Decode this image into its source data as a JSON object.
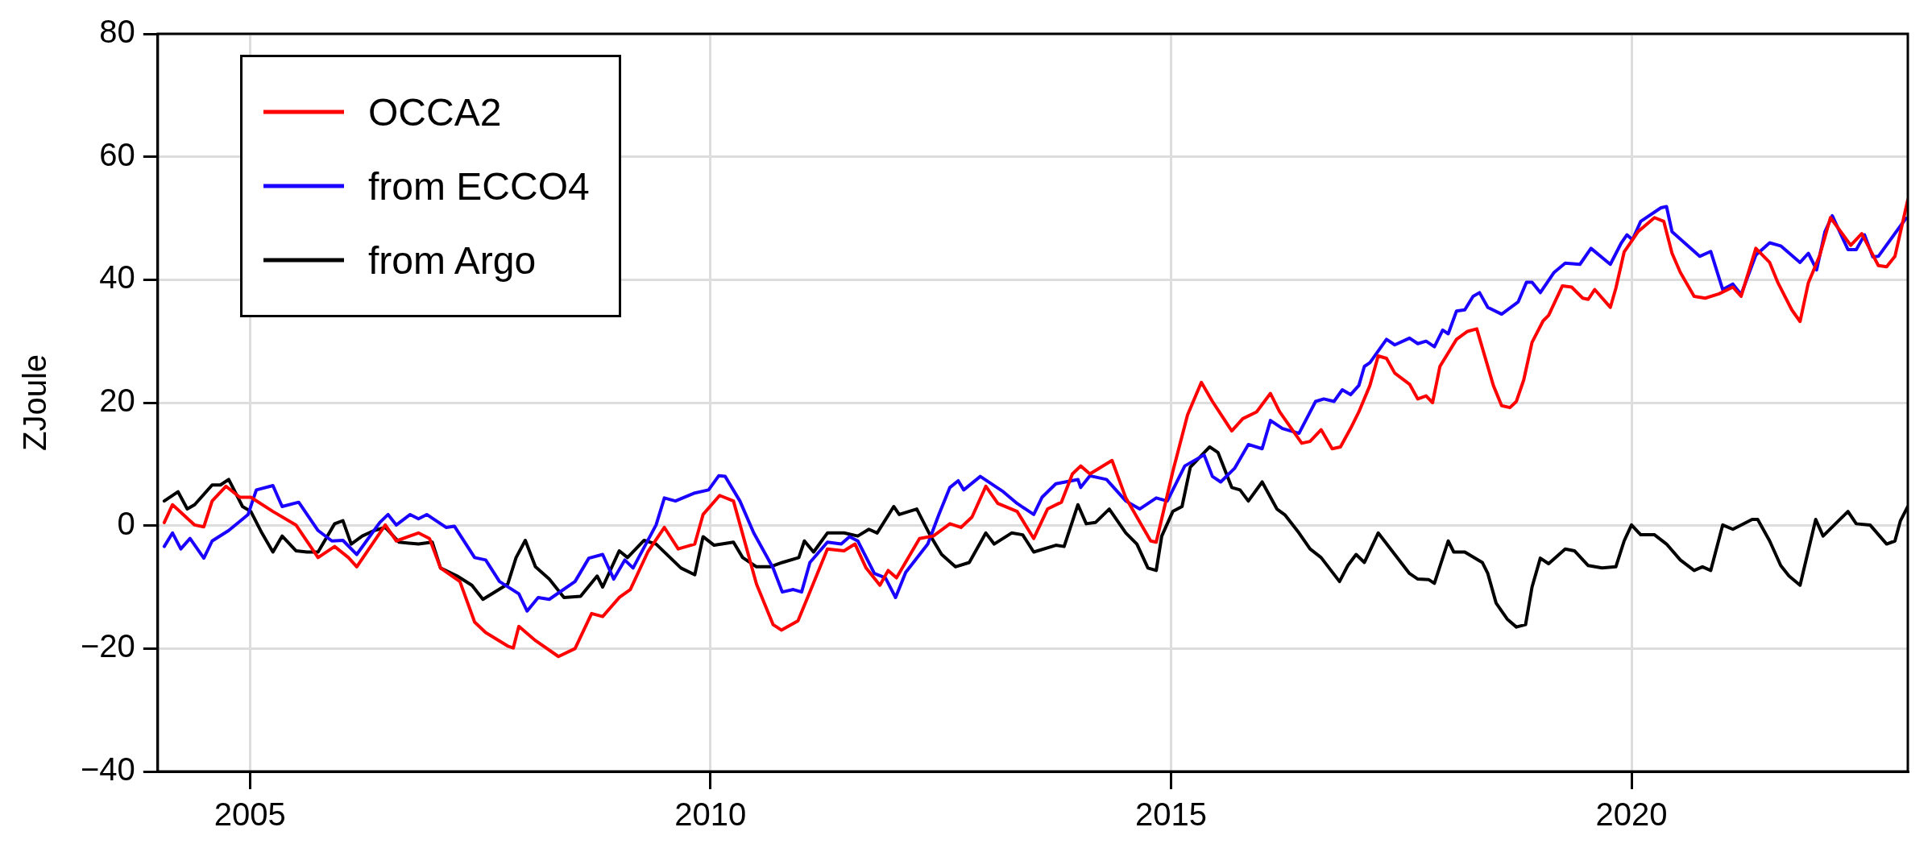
{
  "chart_data": {
    "type": "line",
    "ylabel": "ZJoule",
    "xlim": [
      2004,
      2023
    ],
    "xticks": [
      2005,
      2010,
      2015,
      2020
    ],
    "ylim": [
      -40,
      80
    ],
    "yticks": [
      -40,
      -20,
      0,
      20,
      40,
      60,
      80
    ],
    "grid": true,
    "legend": "top left",
    "line_style": "solid",
    "marker": "none",
    "series": [
      {
        "name": "OCCA2",
        "color": "#ff0000",
        "x": [
          2004.07,
          2004.16,
          2004.4,
          2004.5,
          2004.59,
          2004.74,
          2004.89,
          2005.01,
          2005.25,
          2005.5,
          2005.74,
          2005.92,
          2006.07,
          2006.16,
          2006.47,
          2006.59,
          2006.83,
          2006.95,
          2007.07,
          2007.28,
          2007.44,
          2007.56,
          2007.8,
          2007.86,
          2007.92,
          2008.1,
          2008.35,
          2008.53,
          2008.71,
          2008.83,
          2009.01,
          2009.13,
          2009.32,
          2009.5,
          2009.65,
          2009.83,
          2009.92,
          2010.1,
          2010.25,
          2010.5,
          2010.68,
          2010.77,
          2010.95,
          2011.08,
          2011.27,
          2011.45,
          2011.57,
          2011.69,
          2011.84,
          2011.93,
          2012.02,
          2012.27,
          2012.42,
          2012.6,
          2012.72,
          2012.84,
          2012.99,
          2013.12,
          2013.33,
          2013.51,
          2013.66,
          2013.81,
          2013.93,
          2014.02,
          2014.12,
          2014.36,
          2014.51,
          2014.78,
          2014.84,
          2015.02,
          2015.18,
          2015.33,
          2015.45,
          2015.66,
          2015.78,
          2015.93,
          2016.08,
          2016.18,
          2016.42,
          2016.51,
          2016.63,
          2016.75,
          2016.84,
          2016.95,
          2017.04,
          2017.16,
          2017.25,
          2017.34,
          2017.43,
          2017.59,
          2017.68,
          2017.77,
          2017.84,
          2017.92,
          2018.1,
          2018.22,
          2018.32,
          2018.5,
          2018.59,
          2018.68,
          2018.75,
          2018.83,
          2018.92,
          2019.04,
          2019.1,
          2019.25,
          2019.35,
          2019.47,
          2019.53,
          2019.6,
          2019.77,
          2019.83,
          2019.92,
          2020.07,
          2020.25,
          2020.35,
          2020.44,
          2020.53,
          2020.68,
          2020.8,
          2020.95,
          2021.1,
          2021.19,
          2021.35,
          2021.5,
          2021.59,
          2021.74,
          2021.83,
          2021.92,
          2022.04,
          2022.16,
          2022.38,
          2022.5,
          2022.68,
          2022.77,
          2022.86,
          2023.0
        ],
        "values": [
          0.5,
          3.4,
          0.1,
          -0.2,
          4,
          6.4,
          4.6,
          4.6,
          2.3,
          0.1,
          -5.2,
          -3.4,
          -5.2,
          -6.7,
          0.1,
          -2.5,
          -1.2,
          -2.1,
          -6.9,
          -9.1,
          -15.7,
          -17.4,
          -19.6,
          -19.9,
          -16.4,
          -18.7,
          -21.3,
          -20,
          -14.3,
          -14.8,
          -11.7,
          -10.4,
          -4.3,
          -0.3,
          -3.8,
          -3,
          1.8,
          4.9,
          4,
          -9.5,
          -16.1,
          -17,
          -15.5,
          -10.8,
          -3.8,
          -4.1,
          -3,
          -6.9,
          -9.7,
          -7.3,
          -8.5,
          -2.1,
          -1.7,
          0.3,
          -0.3,
          1.4,
          6.4,
          3.6,
          2.3,
          -2.1,
          2.7,
          3.8,
          8.4,
          9.7,
          8.4,
          10.6,
          4.5,
          -2.5,
          -2.7,
          8.8,
          18,
          23.3,
          20.2,
          15.4,
          17.4,
          18.5,
          21.5,
          18.5,
          13.4,
          13.7,
          15.6,
          12.5,
          12.8,
          15.8,
          18.5,
          22.8,
          27.6,
          27.2,
          24.8,
          23,
          20.6,
          21.1,
          20,
          25.9,
          30.3,
          31.6,
          32,
          22.8,
          19.5,
          19.2,
          20.2,
          23.7,
          29.8,
          33.3,
          34.2,
          39,
          38.8,
          37,
          36.8,
          38.4,
          35.5,
          38.6,
          44.5,
          47.8,
          50.1,
          49.5,
          44.3,
          41.2,
          37.3,
          37,
          37.7,
          38.8,
          37.3,
          45.1,
          42.8,
          39.5,
          35.1,
          33.2,
          39.5,
          43.8,
          50.1,
          45.6,
          47.5,
          42.3,
          42.1,
          43.8,
          53
        ]
      },
      {
        "name": "from ECCO4",
        "color": "#1a00ff",
        "x": [
          2004.07,
          2004.16,
          2004.25,
          2004.35,
          2004.5,
          2004.59,
          2004.77,
          2004.98,
          2005.07,
          2005.25,
          2005.35,
          2005.53,
          2005.74,
          2005.89,
          2006.01,
          2006.16,
          2006.41,
          2006.5,
          2006.59,
          2006.74,
          2006.83,
          2006.92,
          2007.13,
          2007.22,
          2007.44,
          2007.56,
          2007.71,
          2007.92,
          2008.01,
          2008.13,
          2008.25,
          2008.53,
          2008.68,
          2008.83,
          2008.95,
          2009.07,
          2009.16,
          2009.41,
          2009.5,
          2009.62,
          2009.83,
          2009.98,
          2010.09,
          2010.16,
          2010.32,
          2010.47,
          2010.68,
          2010.78,
          2010.9,
          2010.99,
          2011.08,
          2011.27,
          2011.42,
          2011.51,
          2011.6,
          2011.78,
          2011.9,
          2012.01,
          2012.12,
          2012.36,
          2012.48,
          2012.6,
          2012.69,
          2012.75,
          2012.93,
          2013.18,
          2013.33,
          2013.51,
          2013.6,
          2013.75,
          2013.99,
          2014.02,
          2014.12,
          2014.3,
          2014.51,
          2014.66,
          2014.84,
          2014.96,
          2015.15,
          2015.36,
          2015.45,
          2015.54,
          2015.69,
          2015.84,
          2015.99,
          2016.08,
          2016.21,
          2016.39,
          2016.57,
          2016.66,
          2016.77,
          2016.86,
          2016.95,
          2017.04,
          2017.1,
          2017.16,
          2017.34,
          2017.43,
          2017.59,
          2017.68,
          2017.77,
          2017.86,
          2017.95,
          2018.01,
          2018.1,
          2018.19,
          2018.28,
          2018.35,
          2018.44,
          2018.59,
          2018.77,
          2018.86,
          2018.92,
          2019.01,
          2019.16,
          2019.28,
          2019.44,
          2019.56,
          2019.77,
          2019.89,
          2019.95,
          2020.01,
          2020.1,
          2020.32,
          2020.38,
          2020.44,
          2020.74,
          2020.86,
          2020.99,
          2021.1,
          2021.19,
          2021.35,
          2021.5,
          2021.62,
          2021.83,
          2021.92,
          2022.01,
          2022.1,
          2022.18,
          2022.35,
          2022.44,
          2022.53,
          2022.62,
          2022.68,
          2022.98
        ],
        "values": [
          -3.4,
          -1.2,
          -3.8,
          -2.1,
          -5.3,
          -2.5,
          -0.8,
          1.8,
          5.8,
          6.5,
          3.1,
          3.8,
          -0.8,
          -2.5,
          -2.4,
          -4.7,
          0.5,
          1.8,
          0.1,
          1.8,
          1.1,
          1.8,
          -0.3,
          -0.1,
          -5.2,
          -5.6,
          -9.1,
          -11.1,
          -13.9,
          -11.7,
          -12,
          -9.1,
          -5.3,
          -4.7,
          -8.7,
          -5.6,
          -6.9,
          0.1,
          4.5,
          4,
          5.3,
          5.8,
          8.1,
          8,
          4,
          -1.2,
          -6.9,
          -10.8,
          -10.4,
          -10.8,
          -6,
          -2.7,
          -3,
          -1.8,
          -2.5,
          -7.8,
          -8.5,
          -11.7,
          -7.6,
          -3,
          1.8,
          6.2,
          7.3,
          5.8,
          8,
          5.5,
          3.6,
          1.8,
          4.6,
          6.8,
          7.5,
          6.2,
          8.1,
          7.5,
          4,
          2.7,
          4.5,
          4,
          9.7,
          11.5,
          8,
          7.1,
          9.3,
          13.2,
          12.5,
          17.1,
          15.8,
          15,
          20.2,
          20.6,
          20.2,
          22.1,
          21.3,
          22.8,
          25.9,
          26.5,
          30.3,
          29.4,
          30.5,
          29.6,
          30,
          29.1,
          31.8,
          31.2,
          34.9,
          35.1,
          37.3,
          37.9,
          35.5,
          34.4,
          36.4,
          39.6,
          39.6,
          37.9,
          41.2,
          42.7,
          42.5,
          45.1,
          42.5,
          46,
          47.3,
          46.5,
          49.5,
          51.7,
          51.9,
          47.8,
          43.8,
          44.6,
          38.4,
          39.3,
          37.6,
          44,
          46,
          45.5,
          42.8,
          44.3,
          41.6,
          47.8,
          50.4,
          44.9,
          44.9,
          47.3,
          43.7,
          43.8,
          50
        ]
      },
      {
        "name": "from Argo",
        "color": "#000000",
        "x": [
          2004.07,
          2004.22,
          2004.32,
          2004.4,
          2004.59,
          2004.68,
          2004.77,
          2004.92,
          2005.01,
          2005.13,
          2005.25,
          2005.35,
          2005.5,
          2005.62,
          2005.74,
          2005.92,
          2006.01,
          2006.1,
          2006.22,
          2006.35,
          2006.47,
          2006.62,
          2006.83,
          2006.98,
          2007.07,
          2007.25,
          2007.41,
          2007.53,
          2007.8,
          2007.89,
          2007.99,
          2008.1,
          2008.25,
          2008.41,
          2008.59,
          2008.77,
          2008.83,
          2009.01,
          2009.1,
          2009.28,
          2009.41,
          2009.68,
          2009.83,
          2009.92,
          2010.04,
          2010.25,
          2010.35,
          2010.5,
          2010.65,
          2010.78,
          2010.96,
          2011.02,
          2011.12,
          2011.27,
          2011.45,
          2011.6,
          2011.72,
          2011.81,
          2011.99,
          2012.05,
          2012.24,
          2012.39,
          2012.51,
          2012.66,
          2012.81,
          2012.99,
          2013.08,
          2013.27,
          2013.39,
          2013.51,
          2013.75,
          2013.84,
          2013.99,
          2014.08,
          2014.18,
          2014.33,
          2014.51,
          2014.63,
          2014.75,
          2014.84,
          2014.9,
          2015.02,
          2015.12,
          2015.21,
          2015.42,
          2015.51,
          2015.66,
          2015.75,
          2015.84,
          2015.99,
          2016.15,
          2016.24,
          2016.39,
          2016.51,
          2016.63,
          2016.83,
          2016.92,
          2017.01,
          2017.1,
          2017.25,
          2017.59,
          2017.68,
          2017.8,
          2017.86,
          2018.01,
          2018.07,
          2018.19,
          2018.38,
          2018.44,
          2018.53,
          2018.65,
          2018.75,
          2018.85,
          2018.92,
          2019.01,
          2019.1,
          2019.28,
          2019.38,
          2019.53,
          2019.68,
          2019.83,
          2019.92,
          2020.0,
          2020.1,
          2020.25,
          2020.38,
          2020.53,
          2020.68,
          2020.77,
          2020.86,
          2020.99,
          2021.1,
          2021.31,
          2021.37,
          2021.5,
          2021.62,
          2021.71,
          2021.83,
          2022.0,
          2022.08,
          2022.35,
          2022.44,
          2022.59,
          2022.77,
          2022.86,
          2022.92,
          2023.0
        ],
        "values": [
          4,
          5.5,
          2.7,
          3.4,
          6.6,
          6.6,
          7.5,
          3.1,
          2.3,
          -1.2,
          -4.3,
          -1.7,
          -4.1,
          -4.3,
          -4.3,
          0.3,
          0.8,
          -3,
          -1.7,
          -0.8,
          -0.3,
          -2.7,
          -3,
          -2.7,
          -6.9,
          -8.2,
          -9.7,
          -12,
          -9.5,
          -5.2,
          -2.4,
          -6.7,
          -8.7,
          -11.7,
          -11.5,
          -8.2,
          -10,
          -4.1,
          -5.2,
          -2.4,
          -3,
          -6.9,
          -8,
          -1.8,
          -3.2,
          -2.7,
          -5.2,
          -6.7,
          -6.7,
          -6,
          -5.2,
          -2.5,
          -4.3,
          -1.2,
          -1.2,
          -1.7,
          -0.6,
          -1.2,
          3.1,
          1.8,
          2.7,
          -1.7,
          -4.7,
          -6.7,
          -6,
          -1.2,
          -3,
          -1.2,
          -1.5,
          -4.3,
          -3.2,
          -3.4,
          3.4,
          0.3,
          0.5,
          2.7,
          -1.2,
          -3,
          -6.9,
          -7.3,
          -1.7,
          2.3,
          3.1,
          9.5,
          12.8,
          11.9,
          6.2,
          5.8,
          4,
          7.1,
          2.7,
          1.7,
          -1.2,
          -3.8,
          -5.2,
          -9.1,
          -6.5,
          -4.7,
          -6,
          -1.2,
          -7.8,
          -8.7,
          -8.8,
          -9.4,
          -2.5,
          -4.3,
          -4.3,
          -6,
          -7.8,
          -12.6,
          -15.2,
          -16.5,
          -16.1,
          -10,
          -5.3,
          -6.2,
          -3.8,
          -4.1,
          -6.5,
          -6.9,
          -6.7,
          -2.5,
          0.1,
          -1.5,
          -1.5,
          -3,
          -5.6,
          -7.3,
          -6.7,
          -7.3,
          0.1,
          -0.6,
          1,
          1,
          -2.5,
          -6.5,
          -8.2,
          -9.7,
          1,
          -1.7,
          2.3,
          0.3,
          0.1,
          -3,
          -2.5,
          0.8,
          3.1
        ]
      }
    ]
  }
}
